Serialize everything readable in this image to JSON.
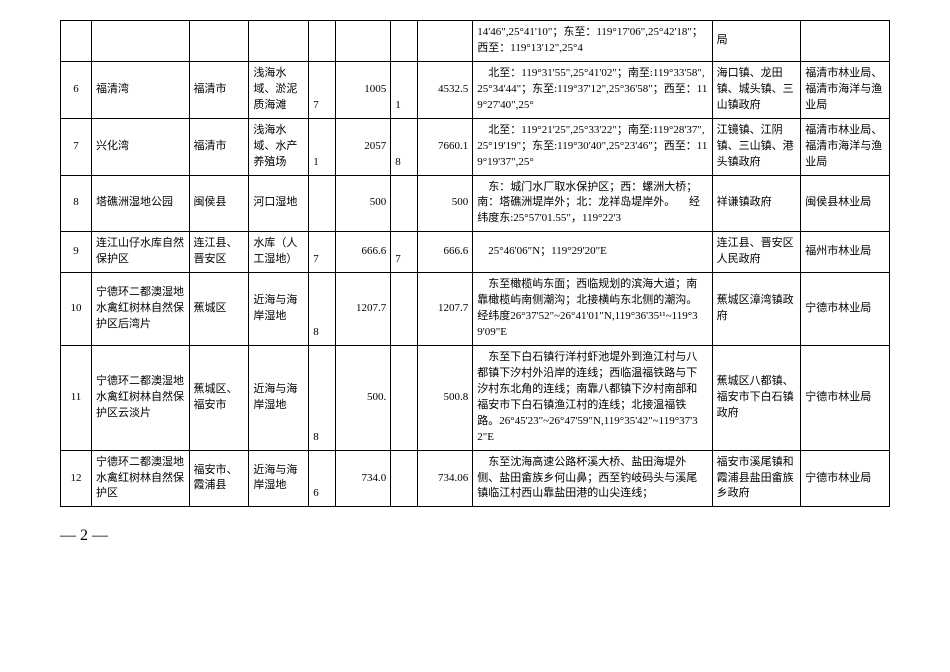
{
  "footer": "— 2 —",
  "rows": [
    {
      "idx": "",
      "name": "",
      "loc": "",
      "type": "",
      "a1": "",
      "a2": "",
      "b1": "",
      "b2": "",
      "bound": "14'46\",25°41'10\"；东至：119°17'06\",25°42'18\"；西至：119°13'12\",25°4",
      "gov": "局",
      "dept": ""
    },
    {
      "idx": "6",
      "name": "福清湾",
      "loc": "福清市",
      "type": "浅海水域、淤泥质海滩",
      "a1": "7",
      "a2": "1005",
      "b1": "1",
      "b2": "4532.5",
      "bound": "北至：119°31'55\",25°41'02\"；南至:119°33'58\",25°34'44\"；东至:119°37'12\",25°36'58\"；西至：119°27'40\",25°",
      "gov": "海口镇、龙田镇、城头镇、三山镇政府",
      "dept": "福清市林业局、福清市海洋与渔业局"
    },
    {
      "idx": "7",
      "name": "兴化湾",
      "loc": "福清市",
      "type": "浅海水域、水产养殖场",
      "a1": "1",
      "a2": "2057",
      "b1": "8",
      "b2": "7660.1",
      "bound": "北至：119°21'25\",25°33'22\"；南至:119°28'37\",25°19'19\"；东至:119°30'40\",25°23'46\"；西至：119°19'37\",25°",
      "gov": "江镜镇、江阴镇、三山镇、港头镇政府",
      "dept": "福清市林业局、福清市海洋与渔业局"
    },
    {
      "idx": "8",
      "name": "塔礁洲湿地公园",
      "loc": "闽侯县",
      "type": "河口湿地",
      "a1": "",
      "a2": "500",
      "b1": "",
      "b2": "500",
      "bound": "东：城门水厂取水保护区；西：螺洲大桥；南：塔礁洲堤岸外；北：龙祥岛堤岸外。\n　经纬度东:25°57'01.55″，119°22'3",
      "gov": "祥谦镇政府",
      "dept": "闽侯县林业局"
    },
    {
      "idx": "9",
      "name": "连江山仔水库自然保护区",
      "loc": "连江县、晋安区",
      "type": "水库（人工湿地）",
      "a1": "7",
      "a2": "666.6",
      "b1": "7",
      "b2": "666.6",
      "bound": "25°46'06″N；119°29'20\"E",
      "gov": "连江县、晋安区人民政府",
      "dept": "福州市林业局"
    },
    {
      "idx": "10",
      "name": "宁德环二都澳湿地水禽红树林自然保护区后湾片",
      "loc": "蕉城区",
      "type": "近海与海岸湿地",
      "a1": "8",
      "a2": "1207.7",
      "b1": "",
      "b2": "1207.7",
      "bound": "东至橄榄屿东面；西临规划的滨海大道；南靠橄榄屿南侧潮沟；北接横屿东北侧的潮沟。经纬度26°37'52\"~26°41'01\"N,119°36'35¹¹~119°39'09\"E",
      "gov": "蕉城区漳湾镇政府",
      "dept": "宁德市林业局"
    },
    {
      "idx": "11",
      "name": "宁德环二都澳湿地水禽红树林自然保护区云淡片",
      "loc": "蕉城区、福安市",
      "type": "近海与海岸湿地",
      "a1": "8",
      "a2": "500.",
      "b1": "",
      "b2": "500.8",
      "bound": "东至下白石镇行洋村虾池堤外到渔江村与八都镇下汐村外沿岸的连线；西临温福铁路与下汐村东北角的连线；南靠八都镇下汐村南部和福安市下白石镇渔江村的连线；北接温福铁路。26°45'23\"~26°47'59″N,119°35'42\"~119°37'32\"E",
      "gov": "蕉城区八都镇、福安市下白石镇政府",
      "dept": "宁德市林业局"
    },
    {
      "idx": "12",
      "name": "宁德环二都澳湿地水禽红树林自然保护区",
      "loc": "福安市、霞浦县",
      "type": "近海与海岸湿地",
      "a1": "6",
      "a2": "734.0",
      "b1": "",
      "b2": "734.06",
      "bound": "东至沈海高速公路杯溪大桥、盐田海堤外侧、盐田畲族乡何山鼻；西至钓岐码头与溪尾镇临江村西山靠盐田港的山尖连线；",
      "gov": "福安市溪尾镇和霞浦县盐田畲族乡政府",
      "dept": "宁德市林业局"
    }
  ]
}
